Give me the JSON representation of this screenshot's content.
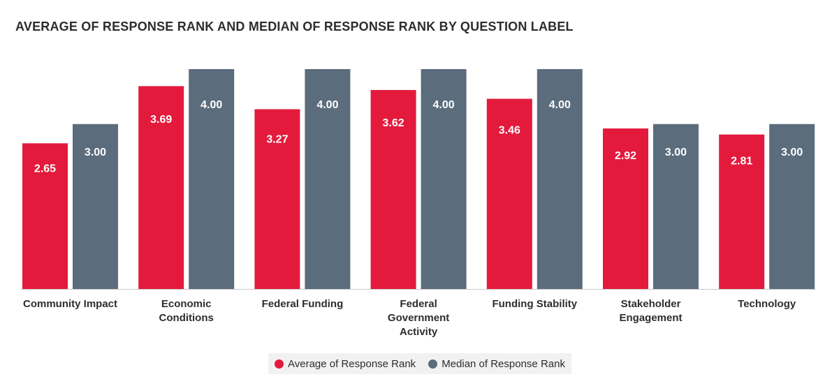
{
  "chart_data": {
    "type": "bar",
    "title": "AVERAGE OF RESPONSE RANK AND MEDIAN OF RESPONSE RANK BY QUESTION LABEL",
    "categories": [
      [
        "Community Impact"
      ],
      [
        "Economic",
        "Conditions"
      ],
      [
        "Federal Funding"
      ],
      [
        "Federal",
        "Government",
        "Activity"
      ],
      [
        "Funding Stability"
      ],
      [
        "Stakeholder",
        "Engagement"
      ],
      [
        "Technology"
      ]
    ],
    "series": [
      {
        "name": "Average of Response Rank",
        "color": "#e31a3c",
        "values": [
          2.65,
          3.69,
          3.27,
          3.62,
          3.46,
          2.92,
          2.81
        ],
        "labels": [
          "2.65",
          "3.69",
          "3.27",
          "3.62",
          "3.46",
          "2.92",
          "2.81"
        ]
      },
      {
        "name": "Median of Response Rank",
        "color": "#5b6c7d",
        "values": [
          3.0,
          4.0,
          4.0,
          4.0,
          4.0,
          3.0,
          3.0
        ],
        "labels": [
          "3.00",
          "4.00",
          "4.00",
          "4.00",
          "4.00",
          "3.00",
          "3.00"
        ]
      }
    ],
    "ylim": [
      0,
      4
    ],
    "grid": false,
    "legend_position": "bottom"
  }
}
